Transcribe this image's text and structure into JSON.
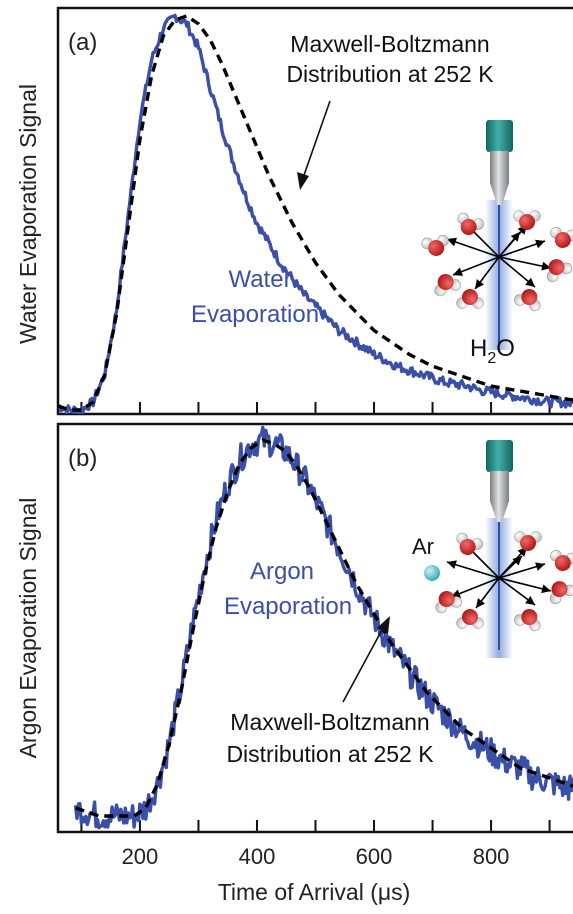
{
  "chart_data": [
    {
      "type": "line",
      "panel_label": "(a)",
      "ylabel": "Water Evaporation Signal",
      "xlim": [
        60,
        940
      ],
      "ylim": [
        0,
        1.02
      ],
      "xticks": [
        100,
        200,
        300,
        400,
        500,
        600,
        700,
        800,
        900
      ],
      "grid": false,
      "series": [
        {
          "name": "Water Evaporation",
          "color": "#3a4fa8",
          "style": "solid",
          "x": [
            60,
            80,
            100,
            120,
            140,
            160,
            180,
            200,
            220,
            240,
            260,
            280,
            300,
            320,
            340,
            360,
            380,
            400,
            420,
            440,
            460,
            480,
            500,
            520,
            540,
            560,
            580,
            600,
            620,
            640,
            660,
            680,
            700,
            720,
            740,
            760,
            780,
            800,
            820,
            840,
            860,
            880,
            900,
            920,
            940
          ],
          "y": [
            0.02,
            0.01,
            0.01,
            0.03,
            0.1,
            0.26,
            0.5,
            0.74,
            0.89,
            0.97,
            1.0,
            0.98,
            0.92,
            0.82,
            0.72,
            0.63,
            0.55,
            0.48,
            0.43,
            0.38,
            0.34,
            0.3,
            0.27,
            0.24,
            0.21,
            0.19,
            0.17,
            0.15,
            0.135,
            0.12,
            0.11,
            0.1,
            0.09,
            0.08,
            0.075,
            0.07,
            0.06,
            0.055,
            0.05,
            0.045,
            0.04,
            0.035,
            0.03,
            0.03,
            0.025
          ]
        },
        {
          "name": "Maxwell-Boltzmann Distribution at 252 K",
          "color": "#000000",
          "style": "dashed",
          "x": [
            60,
            80,
            100,
            120,
            140,
            160,
            180,
            200,
            220,
            240,
            260,
            280,
            300,
            320,
            340,
            360,
            380,
            400,
            420,
            440,
            460,
            480,
            500,
            520,
            540,
            560,
            580,
            600,
            620,
            640,
            660,
            680,
            700,
            720,
            740,
            760,
            780,
            800,
            820,
            840,
            860,
            880,
            900,
            920,
            940
          ],
          "y": [
            0.02,
            0.01,
            0.01,
            0.03,
            0.1,
            0.25,
            0.47,
            0.69,
            0.85,
            0.95,
            0.99,
            1.0,
            0.98,
            0.94,
            0.88,
            0.81,
            0.74,
            0.67,
            0.6,
            0.54,
            0.48,
            0.43,
            0.38,
            0.34,
            0.3,
            0.27,
            0.24,
            0.21,
            0.19,
            0.17,
            0.15,
            0.135,
            0.12,
            0.11,
            0.1,
            0.09,
            0.08,
            0.07,
            0.065,
            0.06,
            0.055,
            0.05,
            0.045,
            0.04,
            0.035
          ]
        }
      ],
      "annotations": {
        "mb_label_line1": "Maxwell-Boltzmann",
        "mb_label_line2": "Distribution at 252 K",
        "data_label_line1": "Water",
        "data_label_line2": "Evaporation",
        "molecule_label_main": "H",
        "molecule_label_sub": "2",
        "molecule_label_end": "O"
      }
    },
    {
      "type": "line",
      "panel_label": "(b)",
      "ylabel": "Argon Evaporation Signal",
      "xlabel": "Time of Arrival (μs)",
      "xlim": [
        60,
        940
      ],
      "ylim": [
        0,
        1.02
      ],
      "xticks": [
        100,
        200,
        300,
        400,
        500,
        600,
        700,
        800,
        900
      ],
      "xticklabels": [
        "200",
        "400",
        "600",
        "800"
      ],
      "xticklabel_values": [
        200,
        400,
        600,
        800
      ],
      "grid": false,
      "series": [
        {
          "name": "Argon Evaporation",
          "color": "#3a4fa8",
          "style": "solid",
          "x": [
            90,
            110,
            130,
            150,
            170,
            190,
            210,
            230,
            250,
            270,
            290,
            310,
            330,
            350,
            370,
            390,
            410,
            430,
            450,
            470,
            490,
            510,
            530,
            550,
            570,
            590,
            610,
            630,
            650,
            670,
            690,
            710,
            730,
            750,
            770,
            790,
            810,
            830,
            850,
            870,
            890,
            910,
            930,
            940
          ],
          "y": [
            0.06,
            0.05,
            0.04,
            0.04,
            0.04,
            0.04,
            0.06,
            0.12,
            0.22,
            0.36,
            0.52,
            0.66,
            0.78,
            0.87,
            0.93,
            0.97,
            0.98,
            0.97,
            0.95,
            0.91,
            0.86,
            0.8,
            0.74,
            0.68,
            0.62,
            0.56,
            0.51,
            0.46,
            0.42,
            0.38,
            0.34,
            0.31,
            0.28,
            0.25,
            0.23,
            0.21,
            0.19,
            0.17,
            0.16,
            0.14,
            0.13,
            0.12,
            0.11,
            0.11
          ]
        },
        {
          "name": "Maxwell-Boltzmann Distribution at 252 K",
          "color": "#000000",
          "style": "dashed",
          "x": [
            90,
            110,
            130,
            150,
            170,
            190,
            210,
            230,
            250,
            270,
            290,
            310,
            330,
            350,
            370,
            390,
            410,
            430,
            450,
            470,
            490,
            510,
            530,
            550,
            570,
            590,
            610,
            630,
            650,
            670,
            690,
            710,
            730,
            750,
            770,
            790,
            810,
            830,
            850,
            870,
            890,
            910,
            930,
            940
          ],
          "y": [
            0.06,
            0.05,
            0.04,
            0.04,
            0.04,
            0.04,
            0.06,
            0.12,
            0.22,
            0.35,
            0.5,
            0.64,
            0.76,
            0.85,
            0.92,
            0.96,
            0.98,
            0.97,
            0.95,
            0.91,
            0.86,
            0.8,
            0.74,
            0.68,
            0.62,
            0.57,
            0.52,
            0.47,
            0.43,
            0.39,
            0.35,
            0.32,
            0.29,
            0.26,
            0.24,
            0.22,
            0.2,
            0.18,
            0.16,
            0.15,
            0.14,
            0.13,
            0.12,
            0.115
          ]
        }
      ],
      "annotations": {
        "mb_label_line1": "Maxwell-Boltzmann",
        "mb_label_line2": "Distribution at 252 K",
        "data_label_line1": "Argon",
        "data_label_line2": "Evaporation",
        "atom_label": "Ar"
      }
    }
  ],
  "colors": {
    "data_line": "#3a4fa8",
    "fit_line": "#000000",
    "nozzle_cap": "#1f8a84",
    "nozzle_body": "#a9aaad",
    "jet_glow": "#6d8fd8",
    "oxygen": "#cc1f1f",
    "hydrogen": "#ececec",
    "argon_atom": "#56c3cf"
  }
}
